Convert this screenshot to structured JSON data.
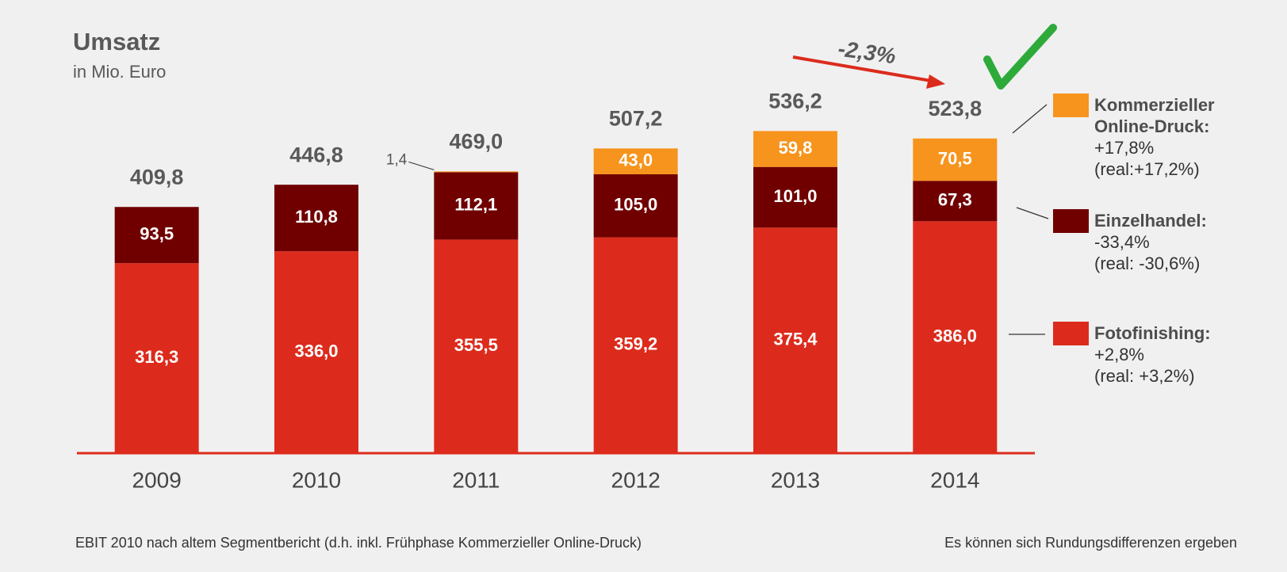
{
  "chart_data": {
    "type": "stacked_bar",
    "title": "Umsatz",
    "subtitle": "in Mio. Euro",
    "categories": [
      "2009",
      "2010",
      "2011",
      "2012",
      "2013",
      "2014"
    ],
    "series": [
      {
        "name": "Fotofinishing:",
        "color": "#dc2b1c",
        "values": [
          316.3,
          336.0,
          355.5,
          359.2,
          375.4,
          386.0
        ],
        "value_labels": [
          "316,3",
          "336,0",
          "355,5",
          "359,2",
          "375,4",
          "386,0"
        ],
        "change": "+2,8%",
        "real": "(real: +3,2%)"
      },
      {
        "name": "Einzelhandel:",
        "color": "#700000",
        "values": [
          93.5,
          110.8,
          112.1,
          105.0,
          101.0,
          67.3
        ],
        "value_labels": [
          "93,5",
          "110,8",
          "112,1",
          "105,0",
          "101,0",
          "67,3"
        ],
        "change": "-33,4%",
        "real": "(real: -30,6%)"
      },
      {
        "name": "Kommerzieller Online-Druck:",
        "color": "#f7941d",
        "values": [
          null,
          null,
          1.4,
          43.0,
          59.8,
          70.5
        ],
        "value_labels": [
          null,
          null,
          "1,4",
          "43,0",
          "59,8",
          "70,5"
        ],
        "change": "+17,8%",
        "real": "(real:+17,2%)"
      }
    ],
    "totals": [
      409.8,
      446.8,
      469.0,
      507.2,
      536.2,
      523.8
    ],
    "total_labels": [
      "409,8",
      "446,8",
      "469,0",
      "507,2",
      "536,2",
      "523,8"
    ],
    "ylim": [
      0,
      600
    ],
    "annotation": "-2,3%",
    "footnote_left": "EBIT 2010 nach altem Segmentbericht (d.h. inkl. Frühphase Kommerzieller Online-Druck)",
    "footnote_right": "Es können sich Rundungsdifferenzen ergeben"
  }
}
